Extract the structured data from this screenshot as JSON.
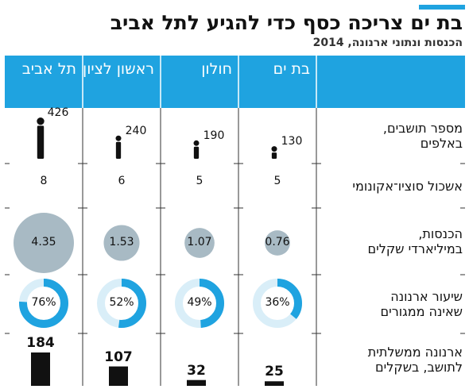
{
  "title": "בת ים צריכה כסף כדי להגיע לתל אביב",
  "subtitle": "הכנסות ונתוני ארנונה, 2014",
  "colors": {
    "accent": "#1fa3e0",
    "bubble": "#a8bac4",
    "ring_track": "#d9eef8",
    "bar": "#111111",
    "grid": "#333333"
  },
  "chart_data": {
    "type": "table",
    "cities": [
      "תל אביב",
      "ראשון לציון",
      "חולון",
      "בת ים"
    ],
    "rows": [
      {
        "label_lines": [
          "מספר תושבים,",
          "באלפים"
        ],
        "values": [
          426,
          240,
          190,
          130
        ],
        "display": [
          "426",
          "240",
          "190",
          "130"
        ]
      },
      {
        "label_lines": [
          "אשכול סוציו־אקונומי"
        ],
        "values": [
          8,
          6,
          5,
          5
        ],
        "display": [
          "8",
          "6",
          "5",
          "5"
        ]
      },
      {
        "label_lines": [
          "הכנסות,",
          "במיליארדי שקלים"
        ],
        "values": [
          4.35,
          1.53,
          1.07,
          0.76
        ],
        "display": [
          "4.35",
          "1.53",
          "1.07",
          "0.76"
        ]
      },
      {
        "label_lines": [
          "שיעור ארנונה",
          "שאינה ממגורים"
        ],
        "values": [
          76,
          52,
          49,
          36
        ],
        "display": [
          "76%",
          "52%",
          "49%",
          "36%"
        ]
      },
      {
        "label_lines": [
          "ארנונה ממשלתית",
          "לתושב, בשקלים"
        ],
        "values": [
          184,
          107,
          32,
          25
        ],
        "display": [
          "184",
          "107",
          "32",
          "25"
        ]
      }
    ]
  }
}
